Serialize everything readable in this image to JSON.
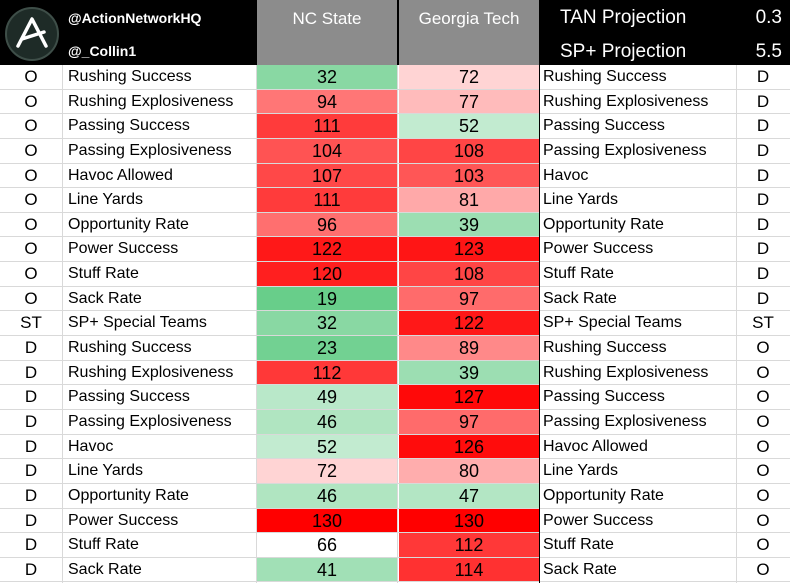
{
  "header": {
    "handle_1": "@ActionNetworkHQ",
    "handle_2": "@_Collin1",
    "team_a": "NC State",
    "team_b": "Georgia Tech",
    "projections": [
      {
        "label": "TAN Projection",
        "value": "0.3"
      },
      {
        "label": "SP+ Projection",
        "value": "5.5"
      }
    ]
  },
  "colors": {
    "header_bg": "#000000",
    "team_header_bg": "#8c8c8c",
    "best_green": "#3fc06a",
    "worst_red": "#ff0000",
    "neutral": "#ffffff"
  },
  "icons": {
    "logo": "action-network-logo-icon"
  },
  "rows": [
    {
      "side_l": "O",
      "stat_l": "Rushing Success",
      "a": "32",
      "b": "72",
      "stat_r": "Rushing Success",
      "side_r": "D"
    },
    {
      "side_l": "O",
      "stat_l": "Rushing Explosiveness",
      "a": "94",
      "b": "77",
      "stat_r": "Rushing Explosiveness",
      "side_r": "D"
    },
    {
      "side_l": "O",
      "stat_l": "Passing Success",
      "a": "111",
      "b": "52",
      "stat_r": "Passing Success",
      "side_r": "D"
    },
    {
      "side_l": "O",
      "stat_l": "Passing Explosiveness",
      "a": "104",
      "b": "108",
      "stat_r": "Passing Explosiveness",
      "side_r": "D"
    },
    {
      "side_l": "O",
      "stat_l": "Havoc Allowed",
      "a": "107",
      "b": "103",
      "stat_r": "Havoc",
      "side_r": "D"
    },
    {
      "side_l": "O",
      "stat_l": "Line Yards",
      "a": "111",
      "b": "81",
      "stat_r": "Line Yards",
      "side_r": "D"
    },
    {
      "side_l": "O",
      "stat_l": "Opportunity Rate",
      "a": "96",
      "b": "39",
      "stat_r": "Opportunity Rate",
      "side_r": "D"
    },
    {
      "side_l": "O",
      "stat_l": "Power Success",
      "a": "122",
      "b": "123",
      "stat_r": "Power Success",
      "side_r": "D"
    },
    {
      "side_l": "O",
      "stat_l": "Stuff Rate",
      "a": "120",
      "b": "108",
      "stat_r": "Stuff Rate",
      "side_r": "D"
    },
    {
      "side_l": "O",
      "stat_l": "Sack Rate",
      "a": "19",
      "b": "97",
      "stat_r": "Sack Rate",
      "side_r": "D"
    },
    {
      "side_l": "ST",
      "stat_l": "SP+ Special Teams",
      "a": "32",
      "b": "122",
      "stat_r": "SP+ Special Teams",
      "side_r": "ST"
    },
    {
      "side_l": "D",
      "stat_l": "Rushing Success",
      "a": "23",
      "b": "89",
      "stat_r": "Rushing Success",
      "side_r": "O"
    },
    {
      "side_l": "D",
      "stat_l": "Rushing Explosiveness",
      "a": "112",
      "b": "39",
      "stat_r": "Rushing Explosiveness",
      "side_r": "O"
    },
    {
      "side_l": "D",
      "stat_l": "Passing Success",
      "a": "49",
      "b": "127",
      "stat_r": "Passing Success",
      "side_r": "O"
    },
    {
      "side_l": "D",
      "stat_l": "Passing Explosiveness",
      "a": "46",
      "b": "97",
      "stat_r": "Passing Explosiveness",
      "side_r": "O"
    },
    {
      "side_l": "D",
      "stat_l": "Havoc",
      "a": "52",
      "b": "126",
      "stat_r": "Havoc Allowed",
      "side_r": "O"
    },
    {
      "side_l": "D",
      "stat_l": "Line Yards",
      "a": "72",
      "b": "80",
      "stat_r": "Line Yards",
      "side_r": "O"
    },
    {
      "side_l": "D",
      "stat_l": "Opportunity Rate",
      "a": "46",
      "b": "47",
      "stat_r": "Opportunity Rate",
      "side_r": "O"
    },
    {
      "side_l": "D",
      "stat_l": "Power Success",
      "a": "130",
      "b": "130",
      "stat_r": "Power Success",
      "side_r": "O"
    },
    {
      "side_l": "D",
      "stat_l": "Stuff Rate",
      "a": "66",
      "b": "112",
      "stat_r": "Stuff Rate",
      "side_r": "O"
    },
    {
      "side_l": "D",
      "stat_l": "Sack Rate",
      "a": "41",
      "b": "114",
      "stat_r": "Sack Rate",
      "side_r": "O"
    }
  ]
}
